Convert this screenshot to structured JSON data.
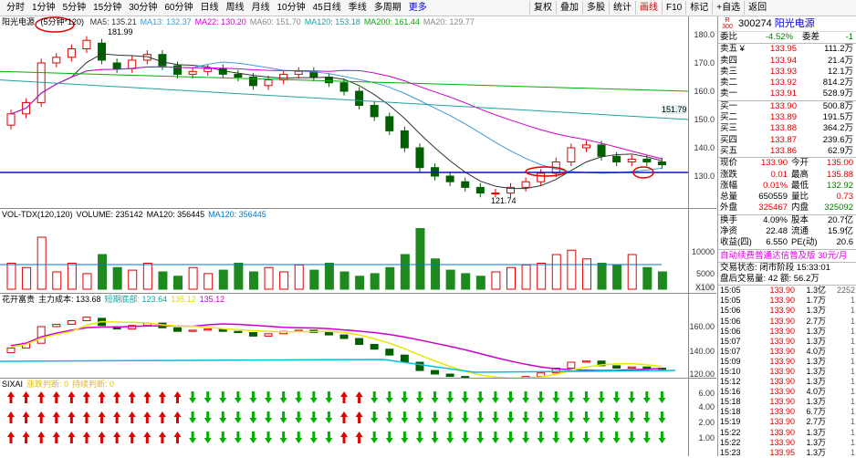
{
  "toolbar": {
    "tabs": [
      "分时",
      "1分钟",
      "5分钟",
      "15分钟",
      "30分钟",
      "60分钟",
      "日线",
      "周线",
      "月线",
      "10分钟",
      "45日线",
      "季线",
      "多周期",
      "更多"
    ],
    "buttons": [
      "复权",
      "叠加",
      "多股",
      "统计",
      "画线",
      "F10",
      "标记",
      "+自选",
      "返回"
    ],
    "active_button": "画线"
  },
  "main_chart": {
    "stock": "阳光电源",
    "period": "(5分钟*120)",
    "ma": [
      {
        "label": "MA5: 135.21",
        "color": "#333333"
      },
      {
        "label": "MA13: 132.37",
        "color": "#3c9bd8"
      },
      {
        "label": "MA22: 130.20",
        "color": "#d000d0"
      },
      {
        "label": "MA60: 151.70",
        "color": "#888888"
      },
      {
        "label": "MA120: 153.18",
        "color": "#20a0a0"
      },
      {
        "label": "MA200: 161.44",
        "color": "#00b000"
      },
      {
        "label": "MA20: 129.77",
        "color": "#888888"
      }
    ],
    "high_label": "181.99",
    "low_label": "121.74",
    "price_tag": "151.79",
    "y_ticks": [
      "180.0",
      "170.0",
      "160.0",
      "150.0",
      "140.0",
      "130.0"
    ]
  },
  "vol_chart": {
    "title_parts": [
      {
        "text": "VOL-TDX(120,120)",
        "color": "#000000"
      },
      {
        "text": "VOLUME: 235142",
        "color": "#000000"
      },
      {
        "text": "MA120: 356445",
        "color": "#000000"
      },
      {
        "text": "MA120: 356445",
        "color": "#0077cc"
      }
    ],
    "y_ticks": [
      "10000",
      "5000"
    ],
    "unit": "X100"
  },
  "ind1": {
    "title_parts": [
      {
        "text": "花开富贵",
        "color": "#000000"
      },
      {
        "text": "主力成本: 133.68",
        "color": "#000000"
      },
      {
        "text": "短期底部: 123.64",
        "color": "#00aaaa"
      },
      {
        "text": "135.12",
        "color": "#dddd00"
      },
      {
        "text": "135.12",
        "color": "#cc00cc"
      }
    ],
    "y_ticks": [
      "160.00",
      "140.00",
      "120.00"
    ]
  },
  "ind2": {
    "title_parts": [
      {
        "text": "SIXAI",
        "color": "#000000"
      },
      {
        "text": "涨跌判断: 0",
        "color": "#e0c000"
      },
      {
        "text": "持续判断: 0",
        "color": "#e0c000"
      }
    ],
    "y_ticks": [
      "6.00",
      "4.00",
      "2.00",
      "1.00"
    ]
  },
  "quote": {
    "code": "300274",
    "name": "阳光电源",
    "webi_label": "委比",
    "webi_val": "-4.52%",
    "wc_label": "委差",
    "wc_val": "-1",
    "asks": [
      {
        "label": "卖五 ¥",
        "price": "133.95",
        "vol": "111.2万"
      },
      {
        "label": "卖四",
        "price": "133.94",
        "vol": "21.4万"
      },
      {
        "label": "卖三",
        "price": "133.93",
        "vol": "12.1万"
      },
      {
        "label": "卖二",
        "price": "133.92",
        "vol": "814.2万"
      },
      {
        "label": "卖一",
        "price": "133.91",
        "vol": "528.9万"
      }
    ],
    "bids": [
      {
        "label": "买一",
        "price": "133.90",
        "vol": "500.8万"
      },
      {
        "label": "买二",
        "price": "133.89",
        "vol": "191.5万"
      },
      {
        "label": "买三",
        "price": "133.88",
        "vol": "364.2万"
      },
      {
        "label": "买四",
        "price": "133.87",
        "vol": "239.6万"
      },
      {
        "label": "买五",
        "price": "133.86",
        "vol": "62.9万"
      }
    ],
    "stats": [
      {
        "l1": "现价",
        "v1": "133.90",
        "l2": "今开",
        "v2": "135.00",
        "c1": "red",
        "c2": "red"
      },
      {
        "l1": "涨跌",
        "v1": "0.01",
        "l2": "最高",
        "v2": "135.88",
        "c1": "red",
        "c2": "red"
      },
      {
        "l1": "涨幅",
        "v1": "0.01%",
        "l2": "最低",
        "v2": "132.92",
        "c1": "red",
        "c2": "green"
      },
      {
        "l1": "总量",
        "v1": "650559",
        "l2": "量比",
        "v2": "0.73",
        "c1": "",
        "c2": "red"
      },
      {
        "l1": "外盘",
        "v1": "325467",
        "l2": "内盘",
        "v2": "325092",
        "c1": "red",
        "c2": "green"
      }
    ],
    "stats2": [
      {
        "l1": "换手",
        "v1": "4.09%",
        "l2": "股本",
        "v2": "20.7亿"
      },
      {
        "l1": "净资",
        "v1": "22.48",
        "l2": "流通",
        "v2": "15.9亿"
      },
      {
        "l1": "收益(四)",
        "v1": "6.550",
        "l2": "PE(动)",
        "v2": "20.6"
      }
    ],
    "notice": "自动续费普通达信普及版 30元/月",
    "status": "交易状态: 闭市阶段 15:33:01",
    "after": "盘后交易量: 42 额: 56.2万",
    "ticks": [
      {
        "t": "15:05",
        "p": "133.90",
        "v": "1.3亿",
        "b": "2252"
      },
      {
        "t": "15:05",
        "p": "133.90",
        "v": "1.7万",
        "b": "1"
      },
      {
        "t": "15:06",
        "p": "133.90",
        "v": "1.3万",
        "b": "1"
      },
      {
        "t": "15:06",
        "p": "133.90",
        "v": "2.7万",
        "b": "1"
      },
      {
        "t": "15:06",
        "p": "133.90",
        "v": "1.3万",
        "b": "1"
      },
      {
        "t": "15:07",
        "p": "133.90",
        "v": "1.3万",
        "b": "1"
      },
      {
        "t": "15:07",
        "p": "133.90",
        "v": "4.0万",
        "b": "1"
      },
      {
        "t": "15:09",
        "p": "133.90",
        "v": "1.3万",
        "b": "1"
      },
      {
        "t": "15:10",
        "p": "133.90",
        "v": "1.3万",
        "b": "1"
      },
      {
        "t": "15:12",
        "p": "133.90",
        "v": "1.3万",
        "b": "1"
      },
      {
        "t": "15:16",
        "p": "133.90",
        "v": "4.0万",
        "b": "1"
      },
      {
        "t": "15:18",
        "p": "133.90",
        "v": "1.3万",
        "b": "1"
      },
      {
        "t": "15:18",
        "p": "133.90",
        "v": "6.7万",
        "b": "1"
      },
      {
        "t": "15:19",
        "p": "133.90",
        "v": "2.7万",
        "b": "1"
      },
      {
        "t": "15:22",
        "p": "133.90",
        "v": "1.3万",
        "b": "1"
      },
      {
        "t": "15:22",
        "p": "133.90",
        "v": "1.3万",
        "b": "1"
      },
      {
        "t": "15:23",
        "p": "133.95",
        "v": "1.3万",
        "b": "1"
      }
    ]
  }
}
